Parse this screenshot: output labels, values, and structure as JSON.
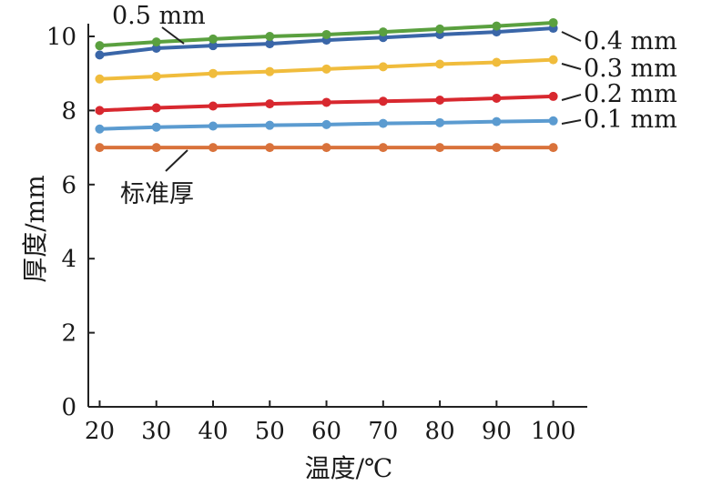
{
  "chart_data": {
    "type": "line",
    "title": "",
    "xlabel": "温度/℃",
    "ylabel": "厚度/mm",
    "x": [
      20,
      30,
      40,
      50,
      60,
      70,
      80,
      90,
      100
    ],
    "xticks": [
      "20",
      "30",
      "40",
      "50",
      "60",
      "70",
      "80",
      "90",
      "100"
    ],
    "yticks": [
      "0",
      "2",
      "4",
      "6",
      "8",
      "10"
    ],
    "ylim": [
      0,
      10
    ],
    "xlim": [
      18,
      106
    ],
    "grid": false,
    "series": [
      {
        "name": "标准厚",
        "color": "#d9723b",
        "values": [
          7.0,
          7.0,
          7.0,
          7.0,
          7.0,
          7.0,
          7.0,
          7.0,
          7.0
        ]
      },
      {
        "name": "0.1 mm",
        "color": "#5b9bd0",
        "values": [
          7.5,
          7.55,
          7.58,
          7.6,
          7.62,
          7.65,
          7.67,
          7.7,
          7.72
        ]
      },
      {
        "name": "0.2 mm",
        "color": "#d8282f",
        "values": [
          8.0,
          8.07,
          8.12,
          8.18,
          8.22,
          8.25,
          8.28,
          8.33,
          8.38
        ]
      },
      {
        "name": "0.3 mm",
        "color": "#f0bc3c",
        "values": [
          8.85,
          8.92,
          9.0,
          9.05,
          9.12,
          9.18,
          9.25,
          9.3,
          9.37
        ]
      },
      {
        "name": "0.4 mm",
        "color": "#3a66a8",
        "values": [
          9.5,
          9.68,
          9.75,
          9.8,
          9.9,
          9.97,
          10.05,
          10.12,
          10.22
        ]
      },
      {
        "name": "0.5 mm",
        "color": "#5aa03f",
        "values": [
          9.75,
          9.85,
          9.93,
          10.0,
          10.05,
          10.12,
          10.2,
          10.28,
          10.37
        ]
      }
    ]
  }
}
